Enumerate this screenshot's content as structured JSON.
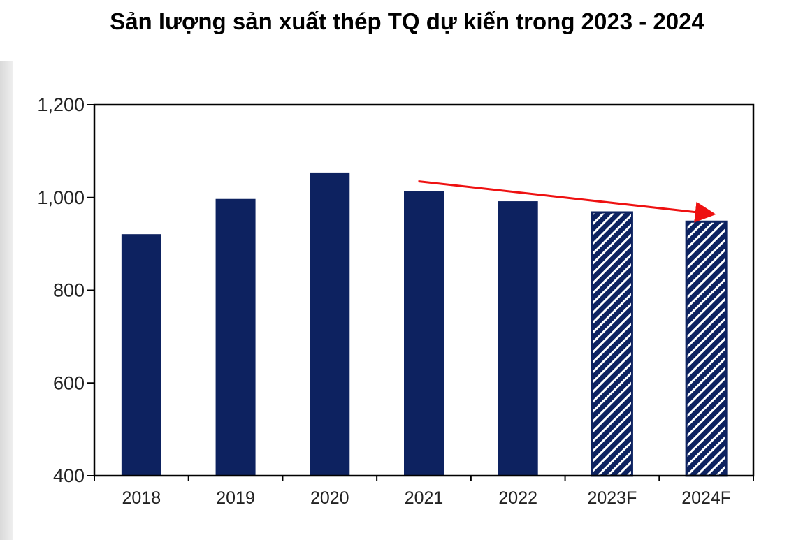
{
  "chart_data": {
    "type": "bar",
    "title": "Sản lượng sản xuất thép TQ dự kiến trong 2023 - 2024",
    "xlabel": "",
    "ylabel": "",
    "ylim": [
      400,
      1200
    ],
    "y_ticks": [
      "1,200",
      "1,000",
      "800",
      "600",
      "400"
    ],
    "y_tick_values": [
      1200,
      1000,
      800,
      600,
      400
    ],
    "categories": [
      "2018",
      "2019",
      "2020",
      "2021",
      "2022",
      "2023F",
      "2024F"
    ],
    "values": [
      921,
      997,
      1054,
      1014,
      992,
      968,
      948
    ],
    "forecast": [
      false,
      false,
      false,
      false,
      false,
      true,
      true
    ],
    "grid": false,
    "colors": {
      "bar": "#0d2260",
      "hatch_light": "#ffffff",
      "trend_arrow": "#ee1111",
      "axis": "#000000"
    },
    "annotation": {
      "type": "trend-arrow",
      "from_category": "2021",
      "to_category": "2024F"
    }
  }
}
